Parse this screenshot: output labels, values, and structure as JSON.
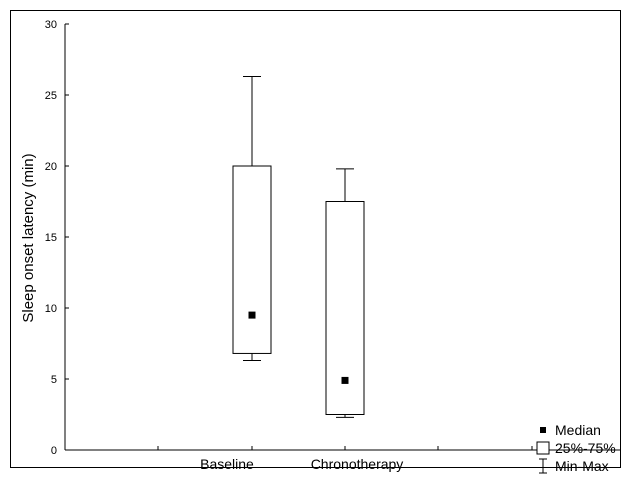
{
  "chart_data": {
    "type": "box",
    "ylabel": "Sleep onset latency (min)",
    "ylim": [
      0,
      30
    ],
    "yticks": [
      0,
      5,
      10,
      15,
      20,
      25,
      30
    ],
    "categories": [
      "Baseline",
      "Chronotherapy"
    ],
    "series": [
      {
        "category": "Baseline",
        "min": 6.3,
        "q1": 6.8,
        "median": 9.5,
        "q3": 20.0,
        "max": 26.3
      },
      {
        "category": "Chronotherapy",
        "min": 2.3,
        "q1": 2.5,
        "median": 4.9,
        "q3": 17.5,
        "max": 19.8
      }
    ],
    "legend": {
      "position": "bottom-right",
      "entries": [
        {
          "symbol": "median-square",
          "label": "Median"
        },
        {
          "symbol": "box",
          "label": "25%-75%"
        },
        {
          "symbol": "whisker",
          "label": "Min-Max"
        }
      ]
    },
    "grid": false
  }
}
